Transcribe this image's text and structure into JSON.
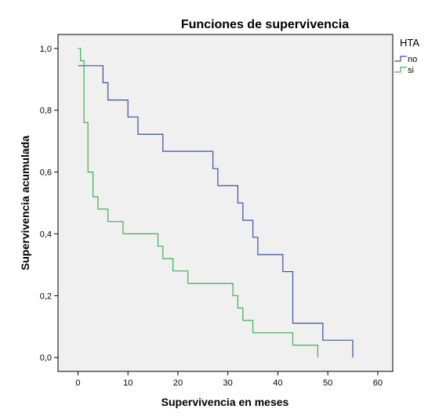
{
  "chart_data": {
    "type": "line",
    "step": true,
    "title": "Funciones de supervivencia",
    "xlabel": "Supervivencia en meses",
    "ylabel": "Supervivencia acumulada",
    "xlim": [
      -4,
      63
    ],
    "ylim": [
      -0.045,
      1.045
    ],
    "xticks": [
      0,
      10,
      20,
      30,
      40,
      50,
      60
    ],
    "xtick_labels": [
      "0",
      "10",
      "20",
      "30",
      "40",
      "50",
      "60"
    ],
    "yticks": [
      0,
      0.2,
      0.4,
      0.6,
      0.8,
      1.0
    ],
    "ytick_labels": [
      "0,0",
      "0,2",
      "0,4",
      "0,6",
      "0,8",
      "1,0"
    ],
    "grid": false,
    "background": "#f0f0f0",
    "legend": {
      "title": "HTA",
      "placement": "top-right outside plot"
    },
    "series": [
      {
        "name": "no",
        "color": "#3a4fa0",
        "x": [
          0,
          5,
          6,
          10,
          12,
          17,
          27,
          28,
          32,
          33,
          35,
          36,
          41,
          43,
          49,
          55
        ],
        "y": [
          0.944,
          0.889,
          0.833,
          0.778,
          0.722,
          0.667,
          0.611,
          0.556,
          0.5,
          0.444,
          0.389,
          0.333,
          0.278,
          0.111,
          0.056,
          0.0
        ]
      },
      {
        "name": "si",
        "color": "#3fb04f",
        "x": [
          0,
          0.5,
          1.2,
          2,
          3,
          4,
          6,
          9,
          16,
          17,
          19,
          22,
          31,
          32,
          33,
          35,
          37,
          43,
          48
        ],
        "y": [
          1.0,
          0.96,
          0.76,
          0.6,
          0.52,
          0.48,
          0.44,
          0.4,
          0.36,
          0.32,
          0.28,
          0.24,
          0.2,
          0.16,
          0.12,
          0.08,
          0.08,
          0.04,
          0.0
        ]
      }
    ]
  }
}
